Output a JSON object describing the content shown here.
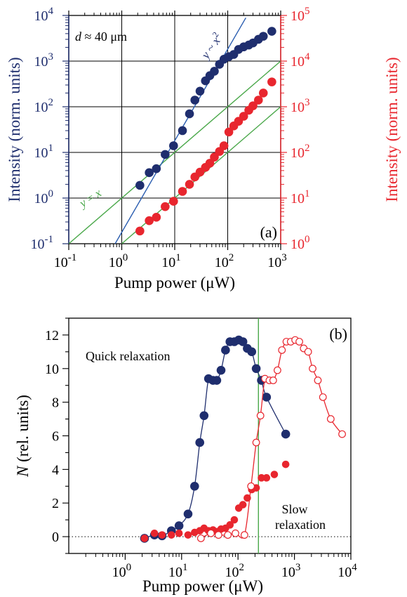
{
  "chart_data": [
    {
      "type": "scatter",
      "panel_label": "(a)",
      "annotation": "d ≈ 40 μm",
      "xlabel": "Pump power (μW)",
      "ylabel_left": "Intensity (norm. units)",
      "ylabel_right": "Intensity (norm. units)",
      "xscale": "log",
      "yscale": "log",
      "xlim": [
        0.1,
        1000
      ],
      "ylim_left": [
        0.1,
        10000
      ],
      "ylim_right": [
        1,
        100000
      ],
      "grid": true,
      "x_ticks": [
        0.1,
        1,
        10,
        100,
        1000
      ],
      "x_tick_labels": [
        [
          "10",
          "-1"
        ],
        [
          "10",
          "0"
        ],
        [
          "10",
          "1"
        ],
        [
          "10",
          "2"
        ],
        [
          "10",
          "3"
        ]
      ],
      "y_left_ticks": [
        0.1,
        1,
        10,
        100,
        1000,
        10000
      ],
      "y_left_tick_labels": [
        [
          "10",
          "-1"
        ],
        [
          "10",
          "0"
        ],
        [
          "10",
          "1"
        ],
        [
          "10",
          "2"
        ],
        [
          "10",
          "3"
        ],
        [
          "10",
          "4"
        ]
      ],
      "y_right_ticks": [
        1,
        10,
        100,
        1000,
        10000,
        100000
      ],
      "y_right_tick_labels": [
        [
          "10",
          "0"
        ],
        [
          "10",
          "1"
        ],
        [
          "10",
          "2"
        ],
        [
          "10",
          "3"
        ],
        [
          "10",
          "4"
        ],
        [
          "10",
          "5"
        ]
      ],
      "colors": {
        "blue": "#1f2e6e",
        "red": "#e8262e",
        "green": "#4aa84a",
        "fit": "#2a5db0"
      },
      "guide_lines": [
        {
          "label": "y = x",
          "label_parts": [
            "y",
            " = ",
            "x"
          ],
          "axis": "left",
          "slope": 1,
          "x": [
            0.1,
            1000
          ],
          "y": [
            0.1,
            1000
          ]
        },
        {
          "label": "",
          "axis": "right",
          "slope": 1,
          "x": [
            1,
            1000
          ],
          "y": [
            1,
            1000
          ]
        }
      ],
      "fit_line": {
        "label": "y ~ x²",
        "label_parts": [
          "y",
          " ~ ",
          "x",
          "2"
        ],
        "axis": "left",
        "slope": 2,
        "x": [
          0.75,
          220
        ],
        "y": [
          0.1,
          8900
        ]
      },
      "series": [
        {
          "axis": "left",
          "color": "blue",
          "marker": "filled-circle",
          "x": [
            2.2,
            3.3,
            4.5,
            6.6,
            9.5,
            14,
            19,
            24,
            30,
            38,
            46,
            56,
            70,
            85,
            105,
            130,
            160,
            200,
            250,
            300,
            380,
            470,
            680
          ],
          "y": [
            1.9,
            3.6,
            4.4,
            9,
            14,
            30,
            70,
            140,
            220,
            370,
            480,
            600,
            850,
            1100,
            1250,
            1400,
            1800,
            2050,
            2250,
            2500,
            3000,
            3500,
            4500
          ]
        },
        {
          "axis": "right",
          "color": "red",
          "marker": "filled-circle",
          "x": [
            2.2,
            3.3,
            4.5,
            6.6,
            9.5,
            14,
            19,
            24,
            30,
            38,
            46,
            56,
            70,
            85,
            105,
            130,
            160,
            200,
            250,
            300,
            380,
            470,
            680
          ],
          "y": [
            1.9,
            3.2,
            3.8,
            6.5,
            8.5,
            14,
            20,
            29,
            37,
            47,
            58,
            79,
            105,
            140,
            280,
            380,
            480,
            620,
            840,
            1050,
            1400,
            2000,
            3500
          ]
        }
      ]
    },
    {
      "type": "line",
      "panel_label": "(b)",
      "xlabel": "Pump power (μW)",
      "ylabel": "N (rel. units)",
      "ylabel_parts": [
        "N",
        " (rel. units)"
      ],
      "xscale": "log",
      "xlim": [
        0.1,
        10000
      ],
      "ylim": [
        -1,
        13
      ],
      "x_ticks": [
        1,
        10,
        100,
        1000,
        10000
      ],
      "x_tick_labels": [
        [
          "10",
          "0"
        ],
        [
          "10",
          "1"
        ],
        [
          "10",
          "2"
        ],
        [
          "10",
          "3"
        ],
        [
          "10",
          "4"
        ]
      ],
      "y_ticks": [
        0,
        2,
        4,
        6,
        8,
        10,
        12
      ],
      "y_tick_labels": [
        "0",
        "2",
        "4",
        "6",
        "8",
        "10",
        "12"
      ],
      "vertical_line": {
        "x": 230,
        "color": "green"
      },
      "zero_line": {
        "y": 0,
        "style": "dotted"
      },
      "annotations": [
        {
          "text": "Quick relaxation",
          "x": 0.45,
          "y": 10.8
        },
        {
          "text": "Slow",
          "x": 600,
          "y": 2.8
        },
        {
          "text": "relaxation",
          "x": 600,
          "y": 1.0
        }
      ],
      "series": [
        {
          "color": "blue",
          "marker": "filled-circle",
          "curve": true,
          "x": [
            2.2,
            3.3,
            4.5,
            6.6,
            9,
            13,
            17,
            21,
            25,
            30,
            36,
            42,
            50,
            60,
            72,
            86,
            103,
            122,
            146,
            175,
            210,
            260,
            320,
            700
          ],
          "y": [
            -0.1,
            0.1,
            0.05,
            0.35,
            0.65,
            1.35,
            3.0,
            5.6,
            7.2,
            9.4,
            9.3,
            9.3,
            9.9,
            11.1,
            11.6,
            11.6,
            11.7,
            11.6,
            11.2,
            11.0,
            10.0,
            9.3,
            8.3,
            6.1
          ]
        },
        {
          "color": "red",
          "marker": "filled-circle",
          "curve": false,
          "x": [
            2.2,
            3.3,
            4.5,
            6.6,
            9,
            13,
            17,
            21,
            25,
            30,
            36,
            42,
            50,
            60,
            72,
            86,
            103,
            122,
            146,
            175,
            210,
            260,
            320,
            440,
            700
          ],
          "y": [
            -0.1,
            0.2,
            0.1,
            0.1,
            0.2,
            0.1,
            0.25,
            0.35,
            0.5,
            0.35,
            0.4,
            0.3,
            0.45,
            0.5,
            0.7,
            1.0,
            1.7,
            1.9,
            2.3,
            2.8,
            2.9,
            3.5,
            3.5,
            3.7,
            4.3
          ]
        },
        {
          "color": "red",
          "marker": "open-circle",
          "curve": true,
          "x": [
            22,
            33,
            45,
            66,
            90,
            130,
            170,
            210,
            250,
            300,
            360,
            420,
            500,
            600,
            720,
            860,
            1030,
            1220,
            1460,
            1750,
            2100,
            2600,
            3200,
            4400,
            7000
          ],
          "y": [
            -0.1,
            0.2,
            0.1,
            0.1,
            0.2,
            0.1,
            3.0,
            5.6,
            7.2,
            9.4,
            9.3,
            9.3,
            9.9,
            11.1,
            11.6,
            11.6,
            11.7,
            11.6,
            11.2,
            11.0,
            10.0,
            9.3,
            8.3,
            7.0,
            6.1
          ]
        }
      ]
    }
  ]
}
